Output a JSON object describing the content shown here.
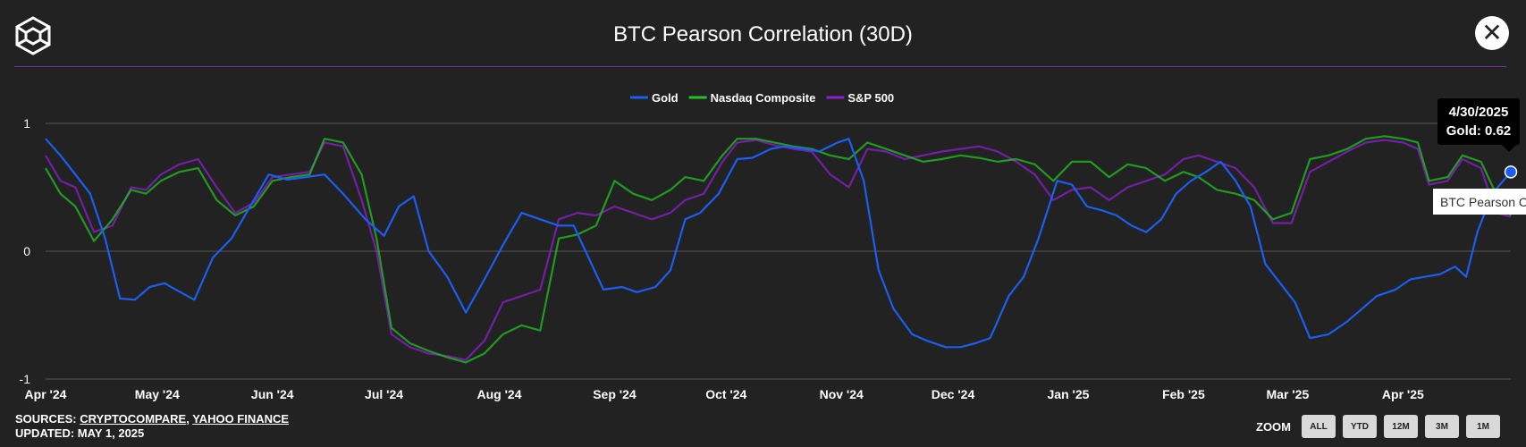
{
  "header": {
    "title": "BTC Pearson Correlation (30D)",
    "logo_icon": "cube-logo-icon",
    "close_icon": "close-icon",
    "rule_color": "#7d2c9e"
  },
  "tooltip": {
    "date": "4/30/2025",
    "value_text": "Gold: 0.62",
    "tag_text": "BTC Pearson C"
  },
  "footer": {
    "sources_label": "SOURCES:",
    "source_1": "CRYPTOCOMPARE",
    "separator": ",",
    "source_2": "YAHOO FINANCE",
    "updated": "UPDATED: MAY 1, 2025"
  },
  "zoom": {
    "label": "ZOOM",
    "buttons": [
      "ALL",
      "YTD",
      "12M",
      "3M",
      "1M"
    ]
  },
  "chart_data": {
    "type": "line",
    "title": "BTC Pearson Correlation (30D)",
    "ylim": [
      -1,
      1
    ],
    "yticks": [
      1,
      0,
      -1
    ],
    "grid": true,
    "legend": "top-center",
    "xlim": [
      "2024-04-01",
      "2025-04-30"
    ],
    "xticks": [
      {
        "date": "2024-04-01",
        "label": "Apr '24"
      },
      {
        "date": "2024-05-01",
        "label": "May '24"
      },
      {
        "date": "2024-06-01",
        "label": "Jun '24"
      },
      {
        "date": "2024-07-01",
        "label": "Jul '24"
      },
      {
        "date": "2024-08-01",
        "label": "Aug '24"
      },
      {
        "date": "2024-09-01",
        "label": "Sep '24"
      },
      {
        "date": "2024-10-01",
        "label": "Oct '24"
      },
      {
        "date": "2024-11-01",
        "label": "Nov '24"
      },
      {
        "date": "2024-12-01",
        "label": "Dec '24"
      },
      {
        "date": "2025-01-01",
        "label": "Jan '25"
      },
      {
        "date": "2025-02-01",
        "label": "Feb '25"
      },
      {
        "date": "2025-03-01",
        "label": "Mar '25"
      },
      {
        "date": "2025-04-01",
        "label": "Apr '25"
      }
    ],
    "highlight": {
      "series": "Gold",
      "date": "2025-04-30",
      "value": 0.62
    },
    "series": [
      {
        "name": "Gold",
        "color": "#1b5ef0",
        "points": [
          [
            "2024-04-01",
            0.88
          ],
          [
            "2024-04-05",
            0.75
          ],
          [
            "2024-04-09",
            0.6
          ],
          [
            "2024-04-13",
            0.45
          ],
          [
            "2024-04-17",
            0.1
          ],
          [
            "2024-04-21",
            -0.37
          ],
          [
            "2024-04-25",
            -0.38
          ],
          [
            "2024-04-29",
            -0.28
          ],
          [
            "2024-05-03",
            -0.25
          ],
          [
            "2024-05-06",
            -0.3
          ],
          [
            "2024-05-11",
            -0.38
          ],
          [
            "2024-05-16",
            -0.05
          ],
          [
            "2024-05-21",
            0.1
          ],
          [
            "2024-05-26",
            0.35
          ],
          [
            "2024-05-31",
            0.6
          ],
          [
            "2024-06-05",
            0.56
          ],
          [
            "2024-06-10",
            0.58
          ],
          [
            "2024-06-15",
            0.6
          ],
          [
            "2024-06-20",
            0.45
          ],
          [
            "2024-06-26",
            0.25
          ],
          [
            "2024-07-01",
            0.12
          ],
          [
            "2024-07-05",
            0.35
          ],
          [
            "2024-07-09",
            0.43
          ],
          [
            "2024-07-13",
            0.0
          ],
          [
            "2024-07-18",
            -0.2
          ],
          [
            "2024-07-23",
            -0.48
          ],
          [
            "2024-07-28",
            -0.22
          ],
          [
            "2024-08-02",
            0.05
          ],
          [
            "2024-08-07",
            0.3
          ],
          [
            "2024-08-12",
            0.25
          ],
          [
            "2024-08-17",
            0.2
          ],
          [
            "2024-08-21",
            0.2
          ],
          [
            "2024-08-25",
            -0.05
          ],
          [
            "2024-08-29",
            -0.3
          ],
          [
            "2024-09-03",
            -0.28
          ],
          [
            "2024-09-07",
            -0.32
          ],
          [
            "2024-09-12",
            -0.28
          ],
          [
            "2024-09-16",
            -0.15
          ],
          [
            "2024-09-20",
            0.25
          ],
          [
            "2024-09-24",
            0.3
          ],
          [
            "2024-09-29",
            0.45
          ],
          [
            "2024-10-04",
            0.72
          ],
          [
            "2024-10-08",
            0.73
          ],
          [
            "2024-10-13",
            0.8
          ],
          [
            "2024-10-17",
            0.82
          ],
          [
            "2024-10-22",
            0.8
          ],
          [
            "2024-10-26",
            0.78
          ],
          [
            "2024-10-31",
            0.85
          ],
          [
            "2024-11-03",
            0.88
          ],
          [
            "2024-11-07",
            0.55
          ],
          [
            "2024-11-11",
            -0.15
          ],
          [
            "2024-11-15",
            -0.45
          ],
          [
            "2024-11-20",
            -0.65
          ],
          [
            "2024-11-24",
            -0.7
          ],
          [
            "2024-11-29",
            -0.75
          ],
          [
            "2024-12-03",
            -0.75
          ],
          [
            "2024-12-07",
            -0.72
          ],
          [
            "2024-12-11",
            -0.68
          ],
          [
            "2024-12-16",
            -0.35
          ],
          [
            "2024-12-20",
            -0.2
          ],
          [
            "2024-12-24",
            0.1
          ],
          [
            "2024-12-29",
            0.55
          ],
          [
            "2025-01-02",
            0.52
          ],
          [
            "2025-01-06",
            0.35
          ],
          [
            "2025-01-10",
            0.32
          ],
          [
            "2025-01-14",
            0.28
          ],
          [
            "2025-01-18",
            0.2
          ],
          [
            "2025-01-22",
            0.15
          ],
          [
            "2025-01-26",
            0.25
          ],
          [
            "2025-01-30",
            0.45
          ],
          [
            "2025-02-03",
            0.55
          ],
          [
            "2025-02-07",
            0.62
          ],
          [
            "2025-02-11",
            0.7
          ],
          [
            "2025-02-15",
            0.55
          ],
          [
            "2025-02-19",
            0.35
          ],
          [
            "2025-02-23",
            -0.1
          ],
          [
            "2025-02-27",
            -0.25
          ],
          [
            "2025-03-03",
            -0.4
          ],
          [
            "2025-03-07",
            -0.68
          ],
          [
            "2025-03-12",
            -0.65
          ],
          [
            "2025-03-17",
            -0.55
          ],
          [
            "2025-03-21",
            -0.45
          ],
          [
            "2025-03-25",
            -0.35
          ],
          [
            "2025-03-30",
            -0.3
          ],
          [
            "2025-04-03",
            -0.22
          ],
          [
            "2025-04-07",
            -0.2
          ],
          [
            "2025-04-11",
            -0.18
          ],
          [
            "2025-04-15",
            -0.12
          ],
          [
            "2025-04-18",
            -0.2
          ],
          [
            "2025-04-21",
            0.15
          ],
          [
            "2025-04-25",
            0.45
          ],
          [
            "2025-04-30",
            0.62
          ]
        ]
      },
      {
        "name": "Nasdaq Composite",
        "color": "#22c322",
        "points": [
          [
            "2024-04-01",
            0.65
          ],
          [
            "2024-04-05",
            0.45
          ],
          [
            "2024-04-09",
            0.35
          ],
          [
            "2024-04-14",
            0.08
          ],
          [
            "2024-04-19",
            0.25
          ],
          [
            "2024-04-24",
            0.48
          ],
          [
            "2024-04-28",
            0.45
          ],
          [
            "2024-05-02",
            0.55
          ],
          [
            "2024-05-07",
            0.62
          ],
          [
            "2024-05-12",
            0.65
          ],
          [
            "2024-05-17",
            0.4
          ],
          [
            "2024-05-22",
            0.28
          ],
          [
            "2024-05-27",
            0.35
          ],
          [
            "2024-06-01",
            0.55
          ],
          [
            "2024-06-06",
            0.58
          ],
          [
            "2024-06-11",
            0.6
          ],
          [
            "2024-06-15",
            0.88
          ],
          [
            "2024-06-20",
            0.85
          ],
          [
            "2024-06-25",
            0.6
          ],
          [
            "2024-06-29",
            0.1
          ],
          [
            "2024-07-03",
            -0.6
          ],
          [
            "2024-07-08",
            -0.72
          ],
          [
            "2024-07-13",
            -0.78
          ],
          [
            "2024-07-18",
            -0.83
          ],
          [
            "2024-07-23",
            -0.87
          ],
          [
            "2024-07-28",
            -0.8
          ],
          [
            "2024-08-02",
            -0.65
          ],
          [
            "2024-08-07",
            -0.58
          ],
          [
            "2024-08-12",
            -0.62
          ],
          [
            "2024-08-17",
            0.1
          ],
          [
            "2024-08-22",
            0.13
          ],
          [
            "2024-08-27",
            0.2
          ],
          [
            "2024-09-01",
            0.55
          ],
          [
            "2024-09-06",
            0.45
          ],
          [
            "2024-09-11",
            0.4
          ],
          [
            "2024-09-16",
            0.48
          ],
          [
            "2024-09-20",
            0.58
          ],
          [
            "2024-09-25",
            0.55
          ],
          [
            "2024-09-30",
            0.75
          ],
          [
            "2024-10-04",
            0.88
          ],
          [
            "2024-10-09",
            0.88
          ],
          [
            "2024-10-14",
            0.85
          ],
          [
            "2024-10-19",
            0.82
          ],
          [
            "2024-10-24",
            0.8
          ],
          [
            "2024-10-29",
            0.75
          ],
          [
            "2024-11-03",
            0.72
          ],
          [
            "2024-11-08",
            0.85
          ],
          [
            "2024-11-13",
            0.8
          ],
          [
            "2024-11-18",
            0.75
          ],
          [
            "2024-11-23",
            0.7
          ],
          [
            "2024-11-28",
            0.72
          ],
          [
            "2024-12-03",
            0.75
          ],
          [
            "2024-12-08",
            0.73
          ],
          [
            "2024-12-13",
            0.7
          ],
          [
            "2024-12-18",
            0.72
          ],
          [
            "2024-12-23",
            0.68
          ],
          [
            "2024-12-28",
            0.55
          ],
          [
            "2025-01-02",
            0.7
          ],
          [
            "2025-01-07",
            0.7
          ],
          [
            "2025-01-12",
            0.58
          ],
          [
            "2025-01-17",
            0.68
          ],
          [
            "2025-01-22",
            0.65
          ],
          [
            "2025-01-27",
            0.55
          ],
          [
            "2025-02-01",
            0.62
          ],
          [
            "2025-02-05",
            0.58
          ],
          [
            "2025-02-10",
            0.48
          ],
          [
            "2025-02-15",
            0.45
          ],
          [
            "2025-02-20",
            0.4
          ],
          [
            "2025-02-25",
            0.25
          ],
          [
            "2025-03-02",
            0.3
          ],
          [
            "2025-03-07",
            0.72
          ],
          [
            "2025-03-12",
            0.75
          ],
          [
            "2025-03-17",
            0.8
          ],
          [
            "2025-03-22",
            0.88
          ],
          [
            "2025-03-27",
            0.9
          ],
          [
            "2025-04-01",
            0.88
          ],
          [
            "2025-04-05",
            0.85
          ],
          [
            "2025-04-08",
            0.55
          ],
          [
            "2025-04-13",
            0.58
          ],
          [
            "2025-04-17",
            0.75
          ],
          [
            "2025-04-22",
            0.7
          ],
          [
            "2025-04-26",
            0.45
          ],
          [
            "2025-04-30",
            0.28
          ]
        ]
      },
      {
        "name": "S&P 500",
        "color": "#8e1fd0",
        "points": [
          [
            "2024-04-01",
            0.75
          ],
          [
            "2024-04-05",
            0.55
          ],
          [
            "2024-04-09",
            0.5
          ],
          [
            "2024-04-14",
            0.15
          ],
          [
            "2024-04-19",
            0.2
          ],
          [
            "2024-04-24",
            0.5
          ],
          [
            "2024-04-28",
            0.48
          ],
          [
            "2024-05-02",
            0.6
          ],
          [
            "2024-05-07",
            0.68
          ],
          [
            "2024-05-12",
            0.72
          ],
          [
            "2024-05-17",
            0.5
          ],
          [
            "2024-05-22",
            0.3
          ],
          [
            "2024-05-27",
            0.38
          ],
          [
            "2024-06-01",
            0.58
          ],
          [
            "2024-06-06",
            0.6
          ],
          [
            "2024-06-11",
            0.62
          ],
          [
            "2024-06-15",
            0.85
          ],
          [
            "2024-06-20",
            0.82
          ],
          [
            "2024-06-25",
            0.4
          ],
          [
            "2024-06-29",
            0.0
          ],
          [
            "2024-07-03",
            -0.65
          ],
          [
            "2024-07-08",
            -0.75
          ],
          [
            "2024-07-13",
            -0.8
          ],
          [
            "2024-07-18",
            -0.82
          ],
          [
            "2024-07-23",
            -0.85
          ],
          [
            "2024-07-28",
            -0.7
          ],
          [
            "2024-08-02",
            -0.4
          ],
          [
            "2024-08-07",
            -0.35
          ],
          [
            "2024-08-12",
            -0.3
          ],
          [
            "2024-08-17",
            0.25
          ],
          [
            "2024-08-22",
            0.3
          ],
          [
            "2024-08-27",
            0.28
          ],
          [
            "2024-09-01",
            0.35
          ],
          [
            "2024-09-06",
            0.3
          ],
          [
            "2024-09-11",
            0.25
          ],
          [
            "2024-09-16",
            0.3
          ],
          [
            "2024-09-20",
            0.4
          ],
          [
            "2024-09-25",
            0.45
          ],
          [
            "2024-09-30",
            0.7
          ],
          [
            "2024-10-04",
            0.85
          ],
          [
            "2024-10-09",
            0.87
          ],
          [
            "2024-10-14",
            0.83
          ],
          [
            "2024-10-19",
            0.8
          ],
          [
            "2024-10-24",
            0.78
          ],
          [
            "2024-10-29",
            0.6
          ],
          [
            "2024-11-03",
            0.5
          ],
          [
            "2024-11-08",
            0.8
          ],
          [
            "2024-11-13",
            0.78
          ],
          [
            "2024-11-18",
            0.72
          ],
          [
            "2024-11-23",
            0.75
          ],
          [
            "2024-11-28",
            0.78
          ],
          [
            "2024-12-03",
            0.8
          ],
          [
            "2024-12-08",
            0.82
          ],
          [
            "2024-12-13",
            0.78
          ],
          [
            "2024-12-18",
            0.7
          ],
          [
            "2024-12-23",
            0.6
          ],
          [
            "2024-12-28",
            0.4
          ],
          [
            "2025-01-02",
            0.48
          ],
          [
            "2025-01-07",
            0.5
          ],
          [
            "2025-01-12",
            0.4
          ],
          [
            "2025-01-17",
            0.5
          ],
          [
            "2025-01-22",
            0.55
          ],
          [
            "2025-01-27",
            0.6
          ],
          [
            "2025-02-01",
            0.72
          ],
          [
            "2025-02-05",
            0.75
          ],
          [
            "2025-02-10",
            0.7
          ],
          [
            "2025-02-15",
            0.65
          ],
          [
            "2025-02-20",
            0.5
          ],
          [
            "2025-02-25",
            0.22
          ],
          [
            "2025-03-02",
            0.22
          ],
          [
            "2025-03-07",
            0.62
          ],
          [
            "2025-03-12",
            0.7
          ],
          [
            "2025-03-17",
            0.78
          ],
          [
            "2025-03-22",
            0.85
          ],
          [
            "2025-03-27",
            0.87
          ],
          [
            "2025-04-01",
            0.85
          ],
          [
            "2025-04-05",
            0.8
          ],
          [
            "2025-04-08",
            0.52
          ],
          [
            "2025-04-13",
            0.55
          ],
          [
            "2025-04-17",
            0.72
          ],
          [
            "2025-04-22",
            0.65
          ],
          [
            "2025-04-26",
            0.3
          ],
          [
            "2025-04-30",
            0.27
          ]
        ]
      }
    ]
  }
}
